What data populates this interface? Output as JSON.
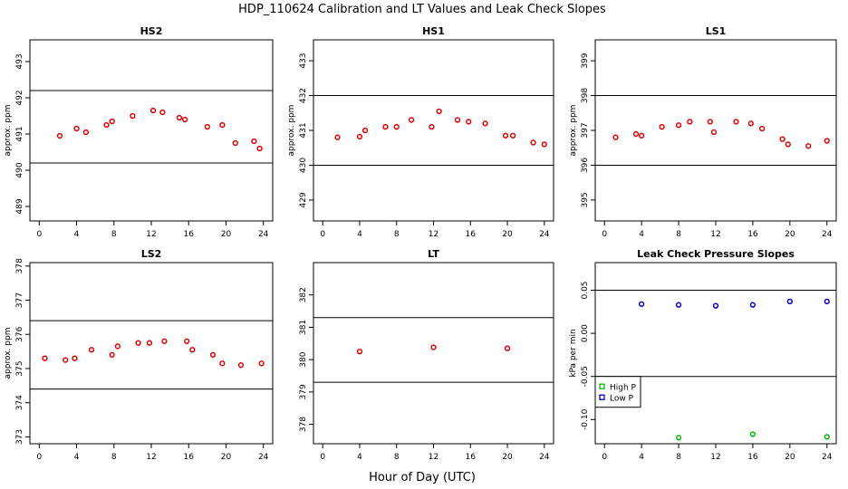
{
  "figure": {
    "title": "HDP_110624  Calibration and LT Values and Leak Check Slopes",
    "xlabel": "Hour of Day (UTC)"
  },
  "chart_data": [
    {
      "type": "scatter",
      "title": "HS2",
      "ylabel": "approx. ppm",
      "xlim": [
        -1,
        25
      ],
      "ylim": [
        488.6,
        493.6
      ],
      "xticks": [
        0,
        4,
        8,
        12,
        16,
        20,
        24
      ],
      "yticks": [
        489,
        490,
        491,
        492,
        493
      ],
      "hlines": [
        492.2,
        490.2
      ],
      "series": [
        {
          "color": "#e00000",
          "x": [
            2.2,
            4,
            5,
            7.2,
            7.8,
            10,
            12.2,
            13.2,
            15,
            15.6,
            18,
            19.6,
            21,
            23,
            23.6
          ],
          "y": [
            490.95,
            491.15,
            491.05,
            491.25,
            491.35,
            491.5,
            491.65,
            491.6,
            491.45,
            491.4,
            491.2,
            491.25,
            490.75,
            490.8,
            490.6
          ]
        }
      ]
    },
    {
      "type": "scatter",
      "title": "HS1",
      "ylabel": "approx. ppm",
      "xlim": [
        -1,
        25
      ],
      "ylim": [
        428.4,
        433.6
      ],
      "xticks": [
        0,
        4,
        8,
        12,
        16,
        20,
        24
      ],
      "yticks": [
        429,
        430,
        431,
        432,
        433
      ],
      "hlines": [
        432,
        430
      ],
      "series": [
        {
          "color": "#e00000",
          "x": [
            1.6,
            4,
            4.6,
            6.8,
            8,
            9.6,
            11.8,
            12.6,
            14.6,
            15.8,
            17.6,
            19.8,
            20.6,
            22.8,
            24
          ],
          "y": [
            430.8,
            430.82,
            431,
            431.1,
            431.1,
            431.3,
            431.1,
            431.55,
            431.3,
            431.25,
            431.2,
            430.85,
            430.85,
            430.65,
            430.6
          ]
        }
      ]
    },
    {
      "type": "scatter",
      "title": "LS1",
      "ylabel": "approx. ppm",
      "xlim": [
        -1,
        25
      ],
      "ylim": [
        394.4,
        399.6
      ],
      "xticks": [
        0,
        4,
        8,
        12,
        16,
        20,
        24
      ],
      "yticks": [
        395,
        396,
        397,
        398,
        399
      ],
      "hlines": [
        398,
        396
      ],
      "series": [
        {
          "color": "#e00000",
          "x": [
            1.2,
            3.4,
            4,
            6.2,
            8,
            9.2,
            11.4,
            11.8,
            14.2,
            15.8,
            17,
            19.2,
            19.8,
            22,
            24
          ],
          "y": [
            396.8,
            396.9,
            396.85,
            397.1,
            397.15,
            397.25,
            397.25,
            396.95,
            397.25,
            397.2,
            397.05,
            396.75,
            396.6,
            396.55,
            396.7
          ]
        }
      ]
    },
    {
      "type": "scatter",
      "title": "LS2",
      "ylabel": "approx. ppm",
      "xlim": [
        -1,
        25
      ],
      "ylim": [
        372.8,
        378.1
      ],
      "xticks": [
        0,
        4,
        8,
        12,
        16,
        20,
        24
      ],
      "yticks": [
        373,
        374,
        375,
        376,
        377,
        378
      ],
      "hlines": [
        376.4,
        374.4
      ],
      "series": [
        {
          "color": "#e00000",
          "x": [
            0.6,
            2.8,
            3.8,
            5.6,
            7.8,
            8.4,
            10.6,
            11.8,
            13.4,
            15.8,
            16.4,
            18.6,
            19.6,
            21.6,
            23.8
          ],
          "y": [
            375.3,
            375.25,
            375.3,
            375.55,
            375.4,
            375.65,
            375.75,
            375.75,
            375.8,
            375.8,
            375.55,
            375.4,
            375.15,
            375.1,
            375.15
          ]
        }
      ]
    },
    {
      "type": "scatter",
      "title": "LT",
      "ylabel": "",
      "xlim": [
        -1,
        25
      ],
      "ylim": [
        377.4,
        383
      ],
      "xticks": [
        0,
        4,
        8,
        12,
        16,
        20,
        24
      ],
      "yticks": [
        378,
        379,
        380,
        381,
        382
      ],
      "hlines": [
        381.3,
        379.3
      ],
      "series": [
        {
          "color": "#e00000",
          "x": [
            4,
            12,
            20
          ],
          "y": [
            380.25,
            380.38,
            380.35
          ]
        }
      ]
    },
    {
      "type": "scatter",
      "title": "Leak Check Pressure Slopes",
      "ylabel": "kPa per min",
      "xlim": [
        -1,
        25
      ],
      "ylim": [
        -0.128,
        0.082
      ],
      "xticks": [
        0,
        4,
        8,
        12,
        16,
        20,
        24
      ],
      "yticks": [
        -0.1,
        -0.05,
        0.0,
        0.05
      ],
      "ytick_labels": [
        "-0.10",
        "-0.05",
        "0.00",
        "0.05"
      ],
      "hlines": [
        0.05,
        -0.05
      ],
      "legend": {
        "position": "bottom-left",
        "entries": [
          "High P",
          "Low P"
        ]
      },
      "series": [
        {
          "name": "High P",
          "color": "#00bb00",
          "x": [
            8,
            16,
            24
          ],
          "y": [
            -0.121,
            -0.117,
            -0.12
          ]
        },
        {
          "name": "Low P",
          "color": "#0000cc",
          "x": [
            4,
            8,
            12,
            16,
            20,
            24
          ],
          "y": [
            0.034,
            0.033,
            0.032,
            0.033,
            0.037,
            0.037
          ]
        }
      ]
    }
  ]
}
